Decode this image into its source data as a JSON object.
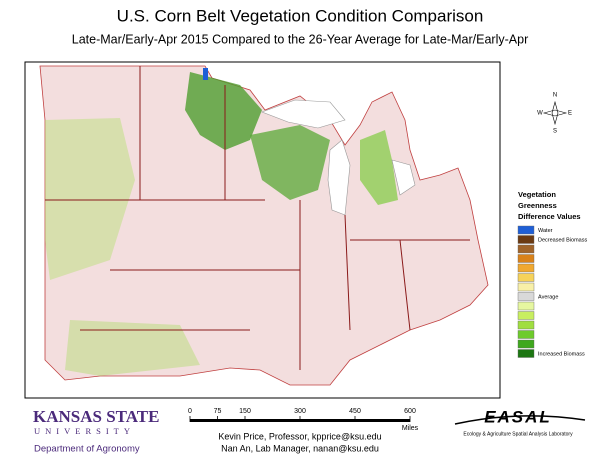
{
  "header": {
    "title": "U.S. Corn Belt Vegetation Condition Comparison",
    "subtitle": "Late-Mar/Early-Apr 2015 Compared to the 26-Year Average for Late-Mar/Early-Apr"
  },
  "compass": {
    "north": "N",
    "south": "S",
    "east": "E",
    "west": "W"
  },
  "legend": {
    "title_lines": [
      "Vegetation",
      "Greenness",
      "Difference Values"
    ],
    "items": [
      {
        "color": "#1f5fd6",
        "label": "Water"
      },
      {
        "color": "#6b3a12",
        "label": "Decreased Biomass"
      },
      {
        "color": "#a0642a"
      },
      {
        "color": "#d9821a"
      },
      {
        "color": "#f0a830"
      },
      {
        "color": "#f6d25a"
      },
      {
        "color": "#f8f0a8"
      },
      {
        "color": "#d9d9d9",
        "label": "Average"
      },
      {
        "color": "#e6f7a0"
      },
      {
        "color": "#c8ee60"
      },
      {
        "color": "#a0de40"
      },
      {
        "color": "#6ecb2c"
      },
      {
        "color": "#3fa81e"
      },
      {
        "color": "#1c7612",
        "label": "Increased Biomass"
      }
    ]
  },
  "scale_bar": {
    "ticks": [
      0,
      75,
      150,
      300,
      450,
      600
    ],
    "unit": "Miles"
  },
  "logo_left": {
    "line1": "KANSAS STATE",
    "line2": "UNIVERSITY",
    "department": "Department of Agronomy"
  },
  "credits": [
    "Kevin Price, Professor, kpprice@ksu.edu",
    "Nan An, Lab Manager, nanan@ksu.edu"
  ],
  "logo_right": {
    "name": "EASAL",
    "full_name": "Ecology & Agriculture Spatial Analysis Laboratory"
  }
}
